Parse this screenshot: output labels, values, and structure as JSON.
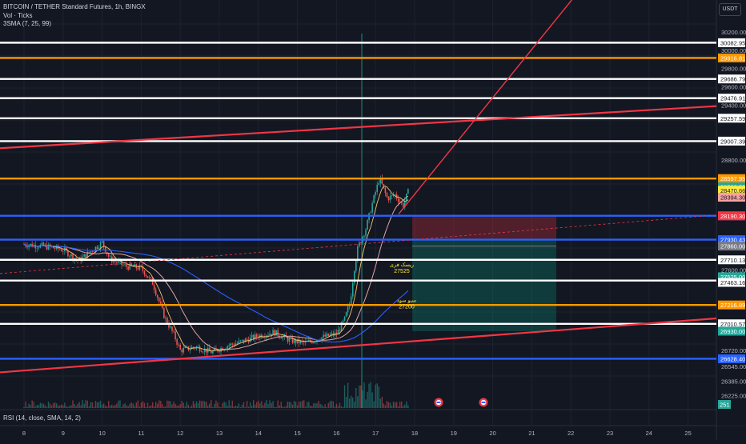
{
  "legend": {
    "symbol": "BITCOIN / TETHER Standard Futures, 1h, BINGX",
    "volume": "Vol · Ticks",
    "sma": "3SMA (7, 25, 99)"
  },
  "currency": "USDT",
  "rsi_label": "RSI (14, close, SMA, 14, 2)",
  "chart_data": {
    "type": "candlestick",
    "x_ticks": [
      "8",
      "9",
      "10",
      "11",
      "12",
      "13",
      "14",
      "15",
      "16",
      "17",
      "18",
      "19",
      "20",
      "21",
      "22",
      "23",
      "24",
      "25"
    ],
    "y_ticks": [
      30200,
      30000,
      29800,
      29600,
      29400,
      28800,
      27600,
      26720,
      26545,
      26385,
      26225
    ],
    "horizontal_levels": [
      {
        "value": "30082.95",
        "color": "#ffffff"
      },
      {
        "value": "29916.81",
        "color": "#ff9800"
      },
      {
        "value": "29686.79",
        "color": "#ffffff"
      },
      {
        "value": "29476.91",
        "color": "#ffffff"
      },
      {
        "value": "29257.59",
        "color": "#ffffff"
      },
      {
        "value": "29007.39",
        "color": "#ffffff"
      },
      {
        "value": "28597.95",
        "color": "#ff9800"
      },
      {
        "value": "28191.30",
        "color": "#2962ff"
      },
      {
        "value": "27930.43",
        "color": "#2962ff"
      },
      {
        "value": "27710.13",
        "color": "#ffffff"
      },
      {
        "value": "27483.43",
        "color": "#ffffff"
      },
      {
        "value": "27216.89",
        "color": "#ff9800"
      },
      {
        "value": "27010.57",
        "color": "#ffffff"
      },
      {
        "value": "26628.40",
        "color": "#2962ff"
      }
    ],
    "price_tags": [
      {
        "text": "28508.52",
        "sub": "43:53",
        "color": "#26a69a"
      },
      {
        "text": "28470.66",
        "color": "#ffeb3b"
      },
      {
        "text": "28394.30",
        "color": "#f7a1a1"
      },
      {
        "text": "28190.30",
        "color": "#f23645"
      },
      {
        "text": "27860.00",
        "color": "#787b86"
      },
      {
        "text": "27525.00",
        "color": "#26a69a"
      },
      {
        "text": "27463.16",
        "color": "#ffffff"
      },
      {
        "text": "26930.00",
        "color": "#26a69a"
      }
    ],
    "annotations": [
      {
        "label": "ریسک فری",
        "value": "27525"
      },
      {
        "label": "سیو سود",
        "value": "27200"
      }
    ],
    "rsi_value": "251"
  }
}
